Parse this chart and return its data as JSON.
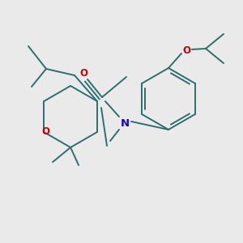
{
  "bg_color": "#eaeaea",
  "bond_color": "#2d6e6e",
  "N_color": "#1a00cc",
  "O_color": "#cc0000",
  "lw": 1.4,
  "figsize": [
    3.0,
    3.0
  ],
  "dpi": 100,
  "xlim": [
    0,
    300
  ],
  "ylim": [
    0,
    300
  ]
}
